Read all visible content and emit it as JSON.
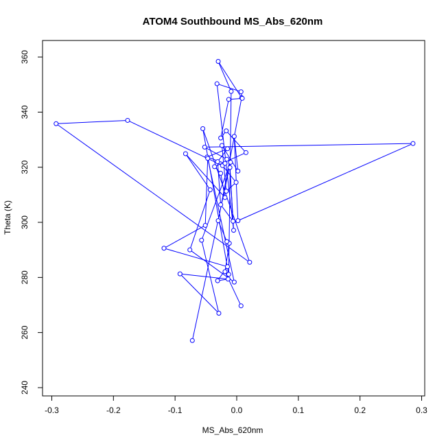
{
  "chart_data": {
    "type": "line",
    "title": "ATOM4 Southbound MS_Abs_620nm",
    "xlabel": "MS_Abs_620nm",
    "ylabel": "Theta (K)",
    "xlim": [
      -0.315,
      0.305
    ],
    "ylim": [
      237,
      366
    ],
    "xticks": [
      -0.3,
      -0.2,
      -0.1,
      0.0,
      0.1,
      0.2,
      0.3
    ],
    "xtick_labels": [
      "-0.3",
      "-0.2",
      "-0.1",
      "0.0",
      "0.1",
      "0.2",
      "0.3"
    ],
    "yticks": [
      240,
      260,
      280,
      300,
      320,
      340,
      360
    ],
    "ytick_labels": [
      "240",
      "260",
      "280",
      "300",
      "320",
      "340",
      "360"
    ],
    "grid": false,
    "series_color": "#0000ff",
    "x": [
      0.007,
      -0.019,
      -0.012,
      -0.016,
      -0.03,
      0.008,
      -0.03,
      -0.009,
      -0.013,
      -0.055,
      0.021,
      -0.293,
      -0.177,
      -0.023,
      -0.001,
      -0.017,
      -0.024,
      0.002,
      -0.004,
      0.002,
      0.286,
      -0.052,
      -0.016,
      -0.019,
      -0.048,
      -0.015,
      -0.031,
      -0.026,
      -0.006,
      -0.011,
      -0.005,
      -0.032,
      0.007,
      0.009,
      -0.013,
      -0.026,
      -0.017,
      0.015,
      -0.036,
      -0.026,
      -0.019,
      -0.083,
      -0.043,
      -0.076,
      -0.004,
      -0.047,
      -0.051,
      -0.118,
      -0.015,
      -0.031,
      -0.014,
      -0.092,
      -0.029,
      -0.057,
      -0.01,
      -0.072
    ],
    "y": [
      269.7,
      282.1,
      292.4,
      293.0,
      300.6,
      345.2,
      358.4,
      347.5,
      281.1,
      334.0,
      285.5,
      335.8,
      337.0,
      320.6,
      314.5,
      311.3,
      327.9,
      318.6,
      331.2,
      300.6,
      328.6,
      327.3,
      322.9,
      321.4,
      323.7,
      326.7,
      322.0,
      306.4,
      300.4,
      319.9,
      297.1,
      350.3,
      347.4,
      345.0,
      344.6,
      330.6,
      333.2,
      325.3,
      320.2,
      317.8,
      309.0,
      324.9,
      311.8,
      290.0,
      278.3,
      323.2,
      298.9,
      290.6,
      283.9,
      278.8,
      279.4,
      281.3,
      267.0,
      293.5,
      321.8,
      257.1
    ]
  }
}
